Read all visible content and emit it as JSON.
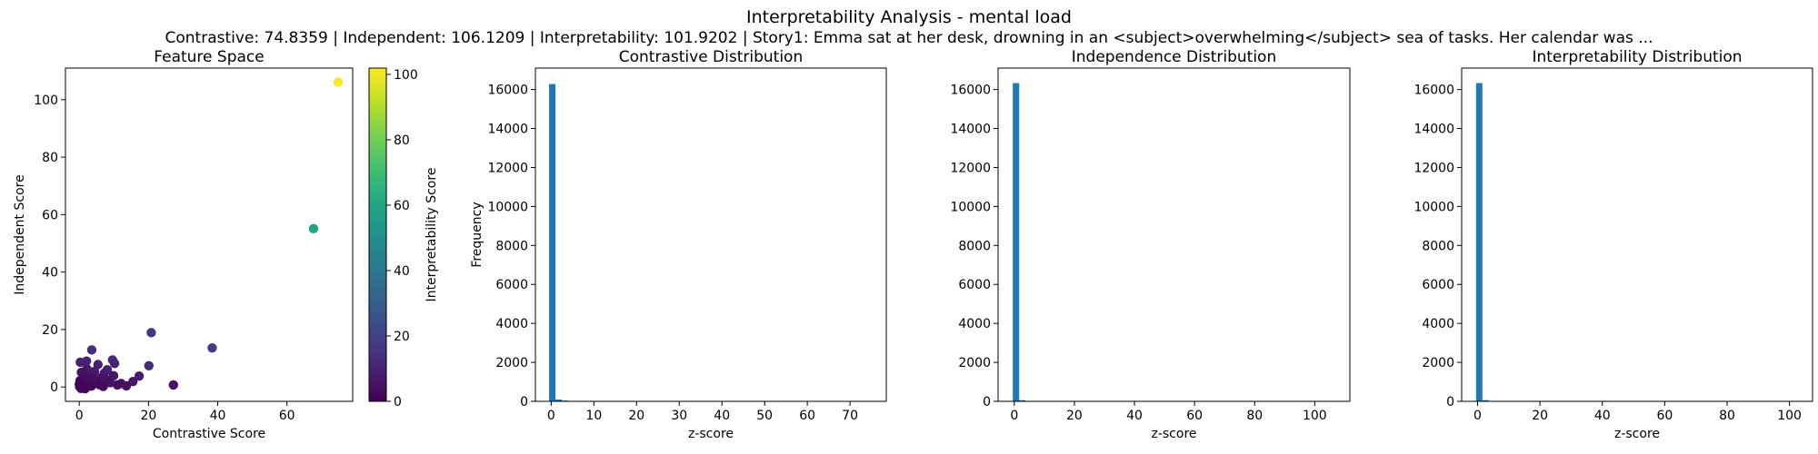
{
  "figure": {
    "title": "Interpretability Analysis - mental load",
    "subtitle": "Contrastive: 74.8359 | Independent: 106.1209 | Interpretability: 101.9202 | Story1: Emma sat at her desk, drowning in an <subject>overwhelming</subject> sea of tasks. Her calendar was ..."
  },
  "chart_data": [
    {
      "type": "scatter",
      "title": "Feature Space",
      "xlabel": "Contrastive Score",
      "ylabel": "Independent Score",
      "xlim": [
        -4,
        79
      ],
      "ylim": [
        -5,
        111
      ],
      "xticks": [
        0,
        20,
        40,
        60
      ],
      "yticks": [
        0,
        20,
        40,
        60,
        80,
        100
      ],
      "colorbar": {
        "label": "Interpretability Score",
        "range": [
          0,
          101.92
        ],
        "ticks": [
          0,
          20,
          40,
          60,
          80,
          100
        ],
        "colormap": "viridis"
      },
      "points": [
        {
          "x": 74.8,
          "y": 106.1,
          "c": 101.9
        },
        {
          "x": 67.7,
          "y": 55.1,
          "c": 60
        },
        {
          "x": 38.4,
          "y": 13.6,
          "c": 18
        },
        {
          "x": 20.8,
          "y": 18.9,
          "c": 16
        },
        {
          "x": 27.2,
          "y": 0.7,
          "c": 5
        },
        {
          "x": 20.1,
          "y": 7.4,
          "c": 12
        },
        {
          "x": 3.6,
          "y": 12.9,
          "c": 14
        },
        {
          "x": 17.3,
          "y": 3.8,
          "c": 8
        },
        {
          "x": 15.5,
          "y": 1.9,
          "c": 6
        },
        {
          "x": 9.6,
          "y": 9.4,
          "c": 12
        },
        {
          "x": 10.2,
          "y": 8.2,
          "c": 10
        },
        {
          "x": 8.1,
          "y": 6.0,
          "c": 9
        },
        {
          "x": 7.2,
          "y": 4.8,
          "c": 8
        },
        {
          "x": 6.2,
          "y": 3.1,
          "c": 6
        },
        {
          "x": 5.4,
          "y": 7.8,
          "c": 9
        },
        {
          "x": 2.1,
          "y": 9.0,
          "c": 10
        },
        {
          "x": 0.3,
          "y": 8.6,
          "c": 9
        },
        {
          "x": 12.1,
          "y": 1.2,
          "c": 5
        },
        {
          "x": 13.6,
          "y": 0.4,
          "c": 4
        },
        {
          "x": 11.0,
          "y": 0.7,
          "c": 4
        },
        {
          "x": 8.9,
          "y": 1.5,
          "c": 5
        },
        {
          "x": 4.4,
          "y": 5.4,
          "c": 7
        },
        {
          "x": 3.0,
          "y": 4.2,
          "c": 6
        },
        {
          "x": 2.2,
          "y": 6.3,
          "c": 7
        },
        {
          "x": 1.4,
          "y": 3.4,
          "c": 5
        },
        {
          "x": 0.6,
          "y": 5.1,
          "c": 5
        },
        {
          "x": 0.2,
          "y": 2.2,
          "c": 3
        },
        {
          "x": 1.0,
          "y": 0.6,
          "c": 2
        },
        {
          "x": 2.5,
          "y": 1.3,
          "c": 2
        },
        {
          "x": 3.5,
          "y": 0.3,
          "c": 2
        },
        {
          "x": 4.7,
          "y": 1.9,
          "c": 3
        },
        {
          "x": 5.8,
          "y": 0.8,
          "c": 2
        },
        {
          "x": 6.9,
          "y": 0.2,
          "c": 2
        },
        {
          "x": 0.1,
          "y": 0.1,
          "c": 1
        },
        {
          "x": 0.5,
          "y": -0.5,
          "c": 1
        },
        {
          "x": 1.7,
          "y": -0.6,
          "c": 1
        },
        {
          "x": 0.0,
          "y": 1.0,
          "c": 1
        },
        {
          "x": 1.9,
          "y": 2.6,
          "c": 3
        },
        {
          "x": 3.8,
          "y": 2.9,
          "c": 4
        },
        {
          "x": 9.9,
          "y": 3.9,
          "c": 6
        },
        {
          "x": 7.6,
          "y": 2.7,
          "c": 5
        }
      ]
    },
    {
      "type": "bar",
      "title": "Contrastive Distribution",
      "xlabel": "z-score",
      "ylabel": "Frequency",
      "xlim": [
        -3.7,
        78.5
      ],
      "ylim": [
        0,
        17100
      ],
      "xticks": [
        0,
        10,
        20,
        30,
        40,
        50,
        60,
        70
      ],
      "yticks": [
        0,
        2000,
        4000,
        6000,
        8000,
        10000,
        12000,
        14000,
        16000
      ],
      "bin_start": -0.5,
      "bin_width": 1.507,
      "counts": [
        16280,
        90,
        40,
        20,
        10,
        5,
        3,
        2,
        2,
        1,
        1,
        1,
        1,
        1
      ]
    },
    {
      "type": "bar",
      "title": "Independence Distribution",
      "xlabel": "z-score",
      "ylabel": "",
      "xlim": [
        -5.4,
        111.7
      ],
      "ylim": [
        0,
        17100
      ],
      "xticks": [
        0,
        20,
        40,
        60,
        80,
        100
      ],
      "yticks": [
        0,
        2000,
        4000,
        6000,
        8000,
        10000,
        12000,
        14000,
        16000
      ],
      "bin_start": -0.5,
      "bin_width": 2.132,
      "counts": [
        16330,
        60,
        20,
        8,
        4,
        2,
        1,
        1
      ]
    },
    {
      "type": "bar",
      "title": "Interpretability Distribution",
      "xlabel": "z-score",
      "ylabel": "",
      "xlim": [
        -5.1,
        107.4
      ],
      "ylim": [
        0,
        17100
      ],
      "xticks": [
        0,
        20,
        40,
        60,
        80,
        100
      ],
      "yticks": [
        0,
        2000,
        4000,
        6000,
        8000,
        10000,
        12000,
        14000,
        16000
      ],
      "bin_start": -0.5,
      "bin_width": 2.048,
      "counts": [
        16330,
        60,
        20,
        8,
        4,
        2,
        1,
        1
      ]
    }
  ],
  "colors": {
    "bar": "#1f77b4",
    "viridis": [
      "#440154",
      "#482475",
      "#414487",
      "#355f8d",
      "#2a788e",
      "#21918c",
      "#22a884",
      "#44bf70",
      "#7ad151",
      "#bddf26",
      "#fde725"
    ]
  }
}
